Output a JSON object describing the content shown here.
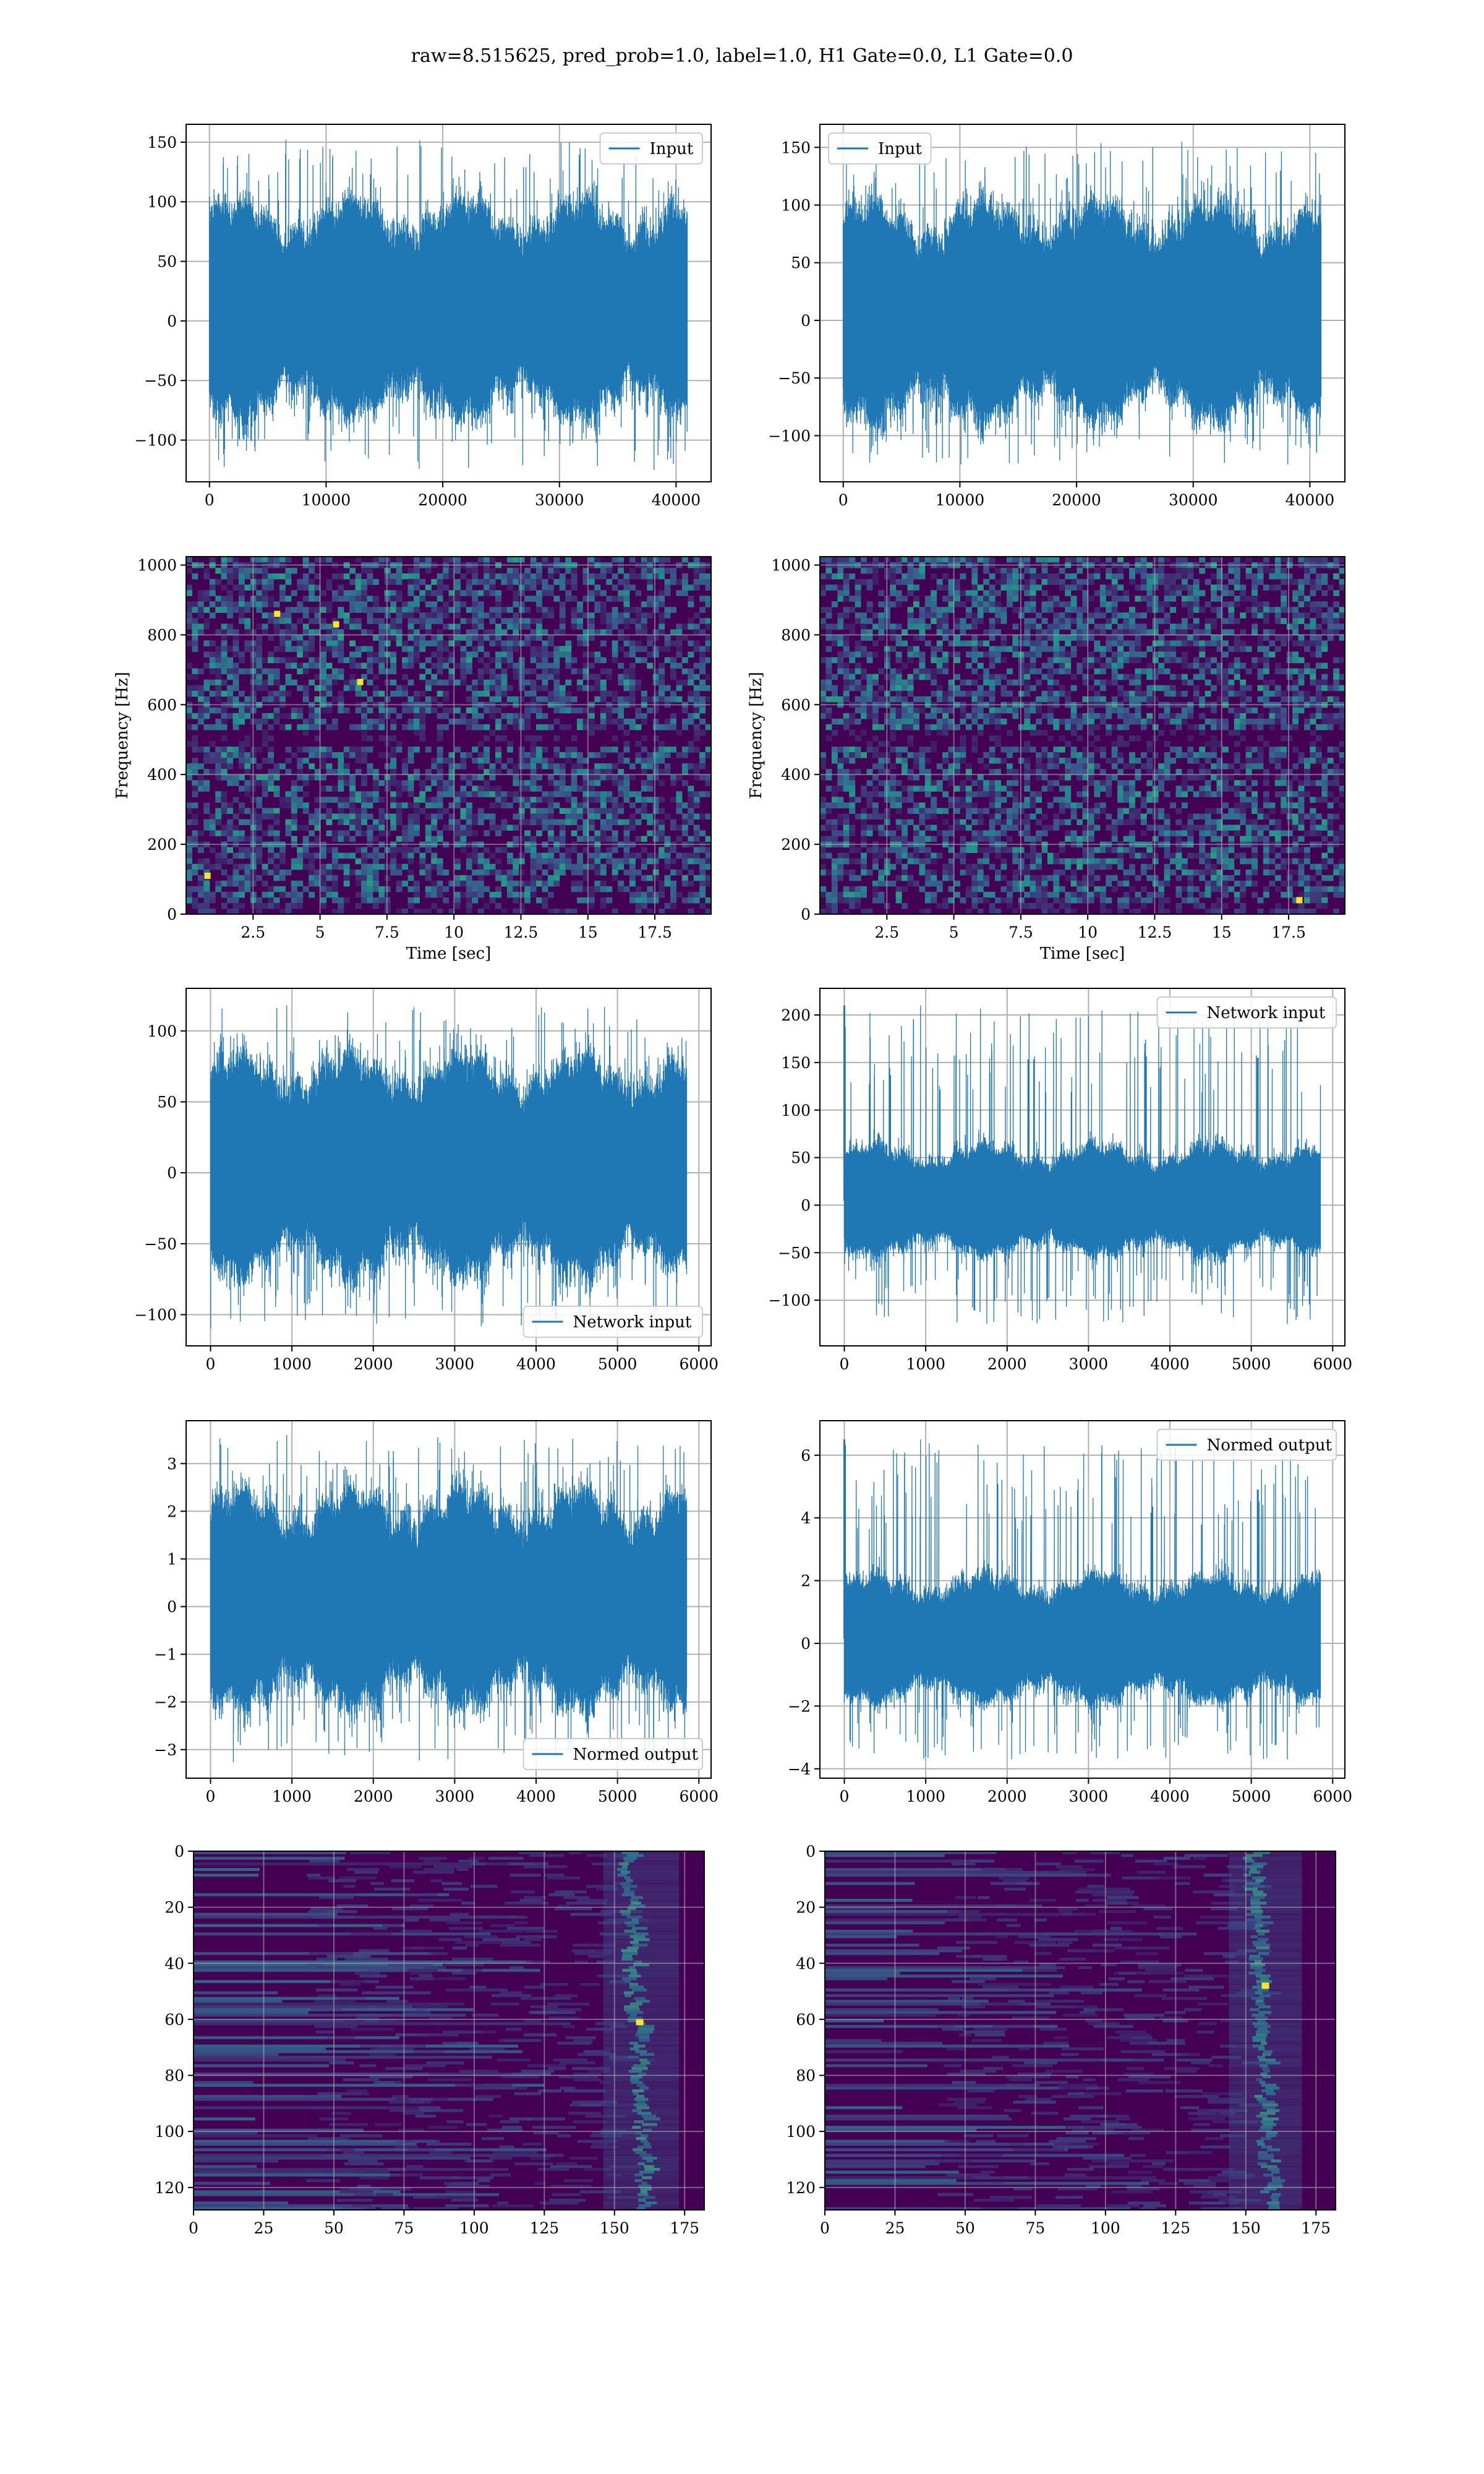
{
  "figure": {
    "title": "raw=8.515625, pred_prob=1.0, label=1.0, H1 Gate=0.0, L1 Gate=0.0",
    "colors": {
      "line": "#1f77b4",
      "grid": "#b0b0b0",
      "spec_base": "#440154",
      "spec_mid": "#3b528b",
      "spec_teal": "#21918c",
      "spec_green": "#5ec962",
      "spec_yellow": "#fde725"
    }
  },
  "chart_data": [
    {
      "id": "h1-input",
      "type": "line",
      "title": "",
      "xlabel": "",
      "ylabel": "",
      "legend": {
        "label": "Input",
        "placement": "top-right"
      },
      "xlim": [
        -2000,
        43000
      ],
      "ylim": [
        -135,
        165
      ],
      "xticks": [
        0,
        10000,
        20000,
        30000,
        40000
      ],
      "yticks": [
        -100,
        -50,
        0,
        50,
        100,
        150
      ],
      "series": [
        {
          "name": "Input",
          "x_range": [
            0,
            40960
          ],
          "envelope_typical": [
            -60,
            80
          ],
          "min": -125,
          "max": 152
        }
      ]
    },
    {
      "id": "l1-input",
      "type": "line",
      "title": "",
      "xlabel": "",
      "ylabel": "",
      "legend": {
        "label": "Input",
        "placement": "top-left"
      },
      "xlim": [
        -2000,
        43000
      ],
      "ylim": [
        -140,
        170
      ],
      "xticks": [
        0,
        10000,
        20000,
        30000,
        40000
      ],
      "yticks": [
        -100,
        -50,
        0,
        50,
        100,
        150
      ],
      "series": [
        {
          "name": "Input",
          "x_range": [
            0,
            40960
          ],
          "envelope_typical": [
            -65,
            80
          ],
          "min": -125,
          "max": 155
        }
      ]
    },
    {
      "id": "h1-spectrogram",
      "type": "heatmap",
      "title": "",
      "xlabel": "Time [sec]",
      "ylabel": "Frequency [Hz]",
      "xlim": [
        0,
        19.6
      ],
      "ylim": [
        0,
        1024
      ],
      "xticks": [
        2.5,
        5.0,
        7.5,
        10.0,
        12.5,
        15.0,
        17.5
      ],
      "yticks": [
        0,
        200,
        400,
        600,
        800,
        1000
      ],
      "colormap": "viridis",
      "features": {
        "dark_band_hz": 500,
        "hot_spots": [
          [
            3.4,
            860
          ],
          [
            5.6,
            830
          ],
          [
            6.5,
            665
          ],
          [
            0.8,
            110
          ]
        ]
      }
    },
    {
      "id": "l1-spectrogram",
      "type": "heatmap",
      "title": "",
      "xlabel": "Time [sec]",
      "ylabel": "Frequency [Hz]",
      "xlim": [
        0,
        19.6
      ],
      "ylim": [
        0,
        1024
      ],
      "xticks": [
        2.5,
        5.0,
        7.5,
        10.0,
        12.5,
        15.0,
        17.5
      ],
      "yticks": [
        0,
        200,
        400,
        600,
        800,
        1000
      ],
      "colormap": "viridis",
      "features": {
        "dark_band_hz": 500,
        "hot_spots": [
          [
            17.9,
            40
          ]
        ]
      }
    },
    {
      "id": "h1-network-input",
      "type": "line",
      "title": "",
      "xlabel": "",
      "ylabel": "",
      "legend": {
        "label": "Network input",
        "placement": "bottom-right"
      },
      "xlim": [
        -300,
        6150
      ],
      "ylim": [
        -122,
        130
      ],
      "xticks": [
        0,
        1000,
        2000,
        3000,
        4000,
        5000,
        6000
      ],
      "yticks": [
        -100,
        -50,
        0,
        50,
        100
      ],
      "series": [
        {
          "name": "Network input",
          "x_range": [
            0,
            5850
          ],
          "envelope_typical": [
            -55,
            65
          ],
          "min": -110,
          "max": 118
        }
      ]
    },
    {
      "id": "l1-network-input",
      "type": "line",
      "title": "",
      "xlabel": "",
      "ylabel": "",
      "legend": {
        "label": "Network input",
        "placement": "top-right"
      },
      "xlim": [
        -300,
        6150
      ],
      "ylim": [
        -148,
        228
      ],
      "xticks": [
        0,
        1000,
        2000,
        3000,
        4000,
        5000,
        6000
      ],
      "yticks": [
        -100,
        -50,
        0,
        50,
        100,
        150,
        200
      ],
      "series": [
        {
          "name": "Network input",
          "x_range": [
            0,
            5850
          ],
          "envelope_typical": [
            -40,
            50
          ],
          "min": -125,
          "max": 210,
          "spikes": [
            [
              0,
              210
            ],
            [
              5080,
              155
            ]
          ]
        }
      ]
    },
    {
      "id": "h1-normed-output",
      "type": "line",
      "title": "",
      "xlabel": "",
      "ylabel": "",
      "legend": {
        "label": "Normed output",
        "placement": "bottom-right"
      },
      "xlim": [
        -300,
        6150
      ],
      "ylim": [
        -3.6,
        3.9
      ],
      "xticks": [
        0,
        1000,
        2000,
        3000,
        4000,
        5000,
        6000
      ],
      "yticks": [
        -3,
        -2,
        -1,
        0,
        1,
        2,
        3
      ],
      "series": [
        {
          "name": "Normed output",
          "x_range": [
            0,
            5850
          ],
          "envelope_typical": [
            -1.6,
            1.9
          ],
          "min": -3.3,
          "max": 3.6
        }
      ]
    },
    {
      "id": "l1-normed-output",
      "type": "line",
      "title": "",
      "xlabel": "",
      "ylabel": "",
      "legend": {
        "label": "Normed output",
        "placement": "top-right"
      },
      "xlim": [
        -300,
        6150
      ],
      "ylim": [
        -4.3,
        7.1
      ],
      "xticks": [
        0,
        1000,
        2000,
        3000,
        4000,
        5000,
        6000
      ],
      "yticks": [
        -4,
        -2,
        0,
        2,
        4,
        6
      ],
      "series": [
        {
          "name": "Normed output",
          "x_range": [
            0,
            5850
          ],
          "envelope_typical": [
            -1.4,
            1.7
          ],
          "min": -3.7,
          "max": 6.5,
          "spikes": [
            [
              0,
              6.5
            ],
            [
              5080,
              4.9
            ]
          ]
        }
      ]
    },
    {
      "id": "h1-feature-map",
      "type": "heatmap",
      "title": "",
      "xlabel": "",
      "ylabel": "",
      "xlim": [
        0,
        182
      ],
      "ylim": [
        128,
        0
      ],
      "xticks": [
        0,
        25,
        50,
        75,
        100,
        125,
        150,
        175
      ],
      "yticks": [
        0,
        20,
        40,
        60,
        80,
        100,
        120
      ],
      "colormap": "viridis",
      "features": {
        "bright_column_range": [
          148,
          165
        ],
        "peak": [
          159,
          61
        ]
      }
    },
    {
      "id": "l1-feature-map",
      "type": "heatmap",
      "title": "",
      "xlabel": "",
      "ylabel": "",
      "xlim": [
        0,
        182
      ],
      "ylim": [
        128,
        0
      ],
      "xticks": [
        0,
        25,
        50,
        75,
        100,
        125,
        150,
        175
      ],
      "yticks": [
        0,
        20,
        40,
        60,
        80,
        100,
        120
      ],
      "colormap": "viridis",
      "features": {
        "bright_column_range": [
          146,
          162
        ],
        "peak": [
          157,
          48
        ]
      }
    }
  ]
}
